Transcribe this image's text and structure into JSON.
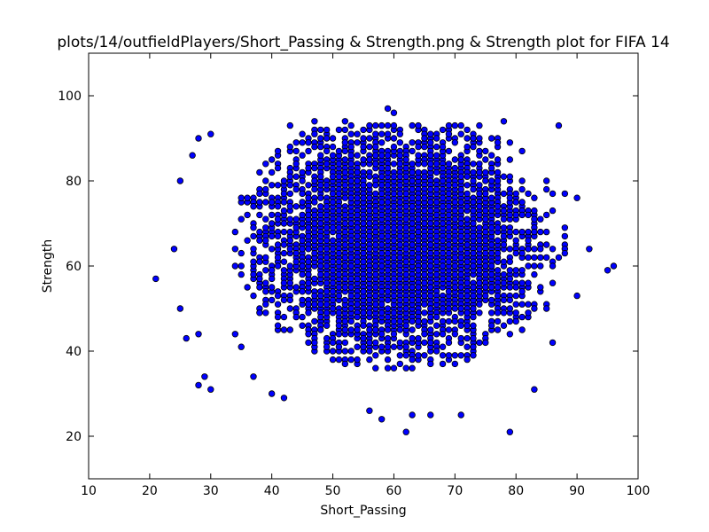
{
  "chart_data": {
    "type": "scatter",
    "title": "plots/14/outfieldPlayers/Short_Passing & Strength.png & Strength plot for FIFA 14",
    "xlabel": "Short_Passing",
    "ylabel": "Strength",
    "xlim": [
      10,
      100
    ],
    "ylim": [
      10,
      110
    ],
    "xticks": [
      "10",
      "20",
      "30",
      "40",
      "50",
      "60",
      "70",
      "80",
      "90",
      "100"
    ],
    "yticks": [
      "20",
      "40",
      "60",
      "80",
      "100"
    ],
    "grid": false,
    "marker_color": "#0000ff",
    "marker_edge_color": "#000000",
    "sample_points": [
      {
        "x": 21,
        "y": 57
      },
      {
        "x": 24,
        "y": 64
      },
      {
        "x": 25,
        "y": 50
      },
      {
        "x": 25,
        "y": 80
      },
      {
        "x": 26,
        "y": 43
      },
      {
        "x": 27,
        "y": 86
      },
      {
        "x": 28,
        "y": 44
      },
      {
        "x": 28,
        "y": 32
      },
      {
        "x": 29,
        "y": 34
      },
      {
        "x": 30,
        "y": 31
      },
      {
        "x": 28,
        "y": 90
      },
      {
        "x": 30,
        "y": 91
      },
      {
        "x": 34,
        "y": 44
      },
      {
        "x": 35,
        "y": 41
      },
      {
        "x": 37,
        "y": 34
      },
      {
        "x": 40,
        "y": 30
      },
      {
        "x": 42,
        "y": 29
      },
      {
        "x": 43,
        "y": 93
      },
      {
        "x": 47,
        "y": 94
      },
      {
        "x": 52,
        "y": 94
      },
      {
        "x": 56,
        "y": 26
      },
      {
        "x": 58,
        "y": 24
      },
      {
        "x": 59,
        "y": 97
      },
      {
        "x": 60,
        "y": 96
      },
      {
        "x": 62,
        "y": 21
      },
      {
        "x": 63,
        "y": 25
      },
      {
        "x": 66,
        "y": 25
      },
      {
        "x": 71,
        "y": 25
      },
      {
        "x": 78,
        "y": 94
      },
      {
        "x": 79,
        "y": 21
      },
      {
        "x": 87,
        "y": 93
      },
      {
        "x": 88,
        "y": 77
      },
      {
        "x": 90,
        "y": 76
      },
      {
        "x": 92,
        "y": 64
      },
      {
        "x": 90,
        "y": 53
      },
      {
        "x": 95,
        "y": 59
      },
      {
        "x": 96,
        "y": 60
      },
      {
        "x": 86,
        "y": 42
      },
      {
        "x": 83,
        "y": 31
      },
      {
        "x": 85,
        "y": 50
      }
    ]
  }
}
